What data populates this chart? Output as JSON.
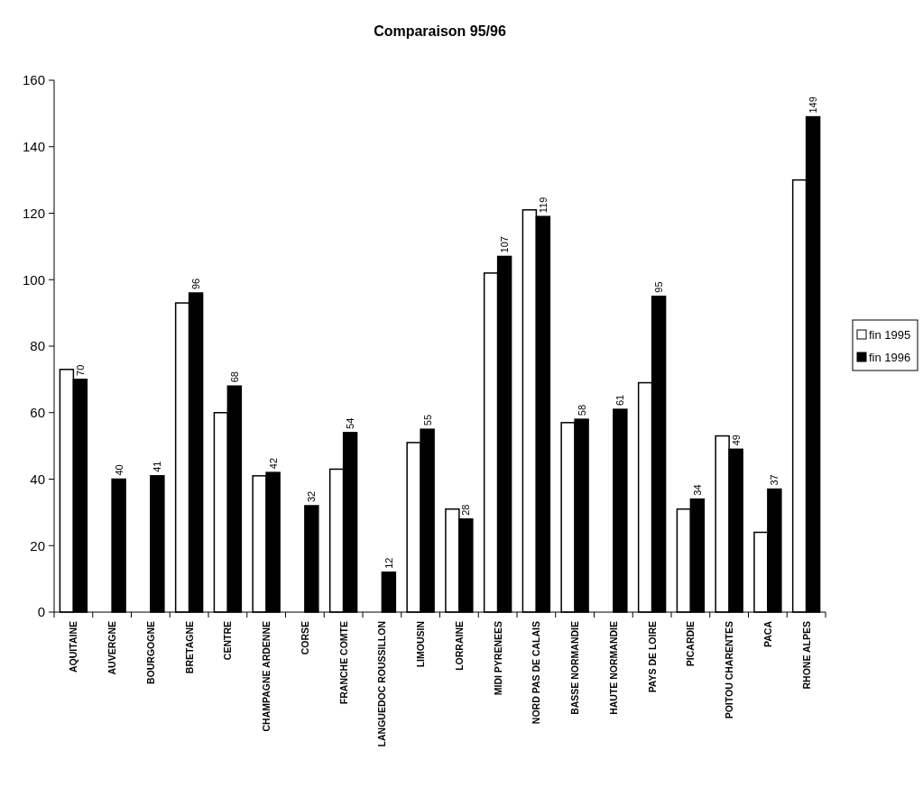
{
  "chart_data": {
    "type": "bar",
    "title": "Comparaison 95/96",
    "categories": [
      "AQUITAINE",
      "AUVERGNE",
      "BOURGOGNE",
      "BRETAGNE",
      "CENTRE",
      "CHAMPAGNE ARDENNE",
      "CORSE",
      "FRANCHE COMTE",
      "LANGUEDOC ROUSSILLON",
      "LIMOUSIN",
      "LORRAINE",
      "MIDI PYRENEES",
      "NORD PAS DE CALAIS",
      "BASSE NORMANDIE",
      "HAUTE NORMANDIE",
      "PAYS DE LOIRE",
      "PICARDIE",
      "POITOU CHARENTES",
      "PACA",
      "RHONE ALPES"
    ],
    "series": [
      {
        "name": "fin 1995",
        "color": "#ffffff",
        "values": [
          73,
          null,
          null,
          93,
          60,
          41,
          null,
          43,
          null,
          51,
          31,
          102,
          121,
          57,
          null,
          69,
          31,
          53,
          24,
          130
        ]
      },
      {
        "name": "fin 1996",
        "color": "#000000",
        "values": [
          70,
          40,
          41,
          96,
          68,
          42,
          32,
          54,
          12,
          55,
          28,
          107,
          119,
          58,
          61,
          95,
          34,
          49,
          37,
          149
        ],
        "value_labels": [
          "70",
          "40",
          "41",
          "96",
          "68",
          "42",
          "32",
          "54",
          "12",
          "55",
          "28",
          "107",
          "119",
          "58",
          "61",
          "95",
          "34",
          "49",
          "37",
          "149"
        ]
      }
    ],
    "ylim": [
      0,
      160
    ],
    "yticks": [
      0,
      20,
      40,
      60,
      80,
      100,
      120,
      140,
      160
    ],
    "grid": false,
    "legend": "right"
  }
}
